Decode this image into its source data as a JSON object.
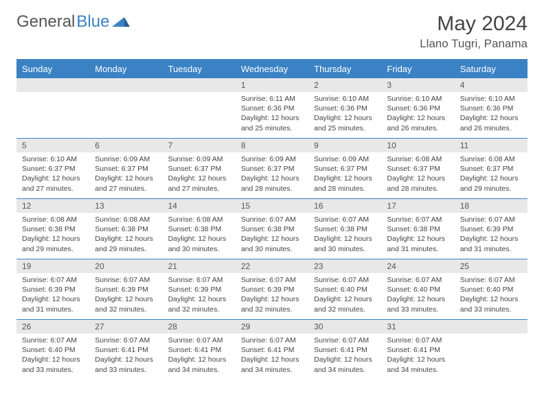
{
  "brand": {
    "part1": "General",
    "part2": "Blue"
  },
  "title": "May 2024",
  "location": "Llano Tugri, Panama",
  "colors": {
    "header_bg": "#3b82c4",
    "header_text": "#ffffff",
    "daynum_bg": "#e8e8e8",
    "border": "#3b82c4",
    "text": "#444444",
    "background": "#ffffff"
  },
  "typography": {
    "title_fontsize": 30,
    "location_fontsize": 17,
    "header_fontsize": 13,
    "daynum_fontsize": 12,
    "content_fontsize": 10.5
  },
  "dayHeaders": [
    "Sunday",
    "Monday",
    "Tuesday",
    "Wednesday",
    "Thursday",
    "Friday",
    "Saturday"
  ],
  "weeks": [
    [
      {
        "day": "",
        "text": ""
      },
      {
        "day": "",
        "text": ""
      },
      {
        "day": "",
        "text": ""
      },
      {
        "day": "1",
        "text": "Sunrise: 6:11 AM\nSunset: 6:36 PM\nDaylight: 12 hours and 25 minutes."
      },
      {
        "day": "2",
        "text": "Sunrise: 6:10 AM\nSunset: 6:36 PM\nDaylight: 12 hours and 25 minutes."
      },
      {
        "day": "3",
        "text": "Sunrise: 6:10 AM\nSunset: 6:36 PM\nDaylight: 12 hours and 26 minutes."
      },
      {
        "day": "4",
        "text": "Sunrise: 6:10 AM\nSunset: 6:36 PM\nDaylight: 12 hours and 26 minutes."
      }
    ],
    [
      {
        "day": "5",
        "text": "Sunrise: 6:10 AM\nSunset: 6:37 PM\nDaylight: 12 hours and 27 minutes."
      },
      {
        "day": "6",
        "text": "Sunrise: 6:09 AM\nSunset: 6:37 PM\nDaylight: 12 hours and 27 minutes."
      },
      {
        "day": "7",
        "text": "Sunrise: 6:09 AM\nSunset: 6:37 PM\nDaylight: 12 hours and 27 minutes."
      },
      {
        "day": "8",
        "text": "Sunrise: 6:09 AM\nSunset: 6:37 PM\nDaylight: 12 hours and 28 minutes."
      },
      {
        "day": "9",
        "text": "Sunrise: 6:09 AM\nSunset: 6:37 PM\nDaylight: 12 hours and 28 minutes."
      },
      {
        "day": "10",
        "text": "Sunrise: 6:08 AM\nSunset: 6:37 PM\nDaylight: 12 hours and 28 minutes."
      },
      {
        "day": "11",
        "text": "Sunrise: 6:08 AM\nSunset: 6:37 PM\nDaylight: 12 hours and 29 minutes."
      }
    ],
    [
      {
        "day": "12",
        "text": "Sunrise: 6:08 AM\nSunset: 6:38 PM\nDaylight: 12 hours and 29 minutes."
      },
      {
        "day": "13",
        "text": "Sunrise: 6:08 AM\nSunset: 6:38 PM\nDaylight: 12 hours and 29 minutes."
      },
      {
        "day": "14",
        "text": "Sunrise: 6:08 AM\nSunset: 6:38 PM\nDaylight: 12 hours and 30 minutes."
      },
      {
        "day": "15",
        "text": "Sunrise: 6:07 AM\nSunset: 6:38 PM\nDaylight: 12 hours and 30 minutes."
      },
      {
        "day": "16",
        "text": "Sunrise: 6:07 AM\nSunset: 6:38 PM\nDaylight: 12 hours and 30 minutes."
      },
      {
        "day": "17",
        "text": "Sunrise: 6:07 AM\nSunset: 6:38 PM\nDaylight: 12 hours and 31 minutes."
      },
      {
        "day": "18",
        "text": "Sunrise: 6:07 AM\nSunset: 6:39 PM\nDaylight: 12 hours and 31 minutes."
      }
    ],
    [
      {
        "day": "19",
        "text": "Sunrise: 6:07 AM\nSunset: 6:39 PM\nDaylight: 12 hours and 31 minutes."
      },
      {
        "day": "20",
        "text": "Sunrise: 6:07 AM\nSunset: 6:39 PM\nDaylight: 12 hours and 32 minutes."
      },
      {
        "day": "21",
        "text": "Sunrise: 6:07 AM\nSunset: 6:39 PM\nDaylight: 12 hours and 32 minutes."
      },
      {
        "day": "22",
        "text": "Sunrise: 6:07 AM\nSunset: 6:39 PM\nDaylight: 12 hours and 32 minutes."
      },
      {
        "day": "23",
        "text": "Sunrise: 6:07 AM\nSunset: 6:40 PM\nDaylight: 12 hours and 32 minutes."
      },
      {
        "day": "24",
        "text": "Sunrise: 6:07 AM\nSunset: 6:40 PM\nDaylight: 12 hours and 33 minutes."
      },
      {
        "day": "25",
        "text": "Sunrise: 6:07 AM\nSunset: 6:40 PM\nDaylight: 12 hours and 33 minutes."
      }
    ],
    [
      {
        "day": "26",
        "text": "Sunrise: 6:07 AM\nSunset: 6:40 PM\nDaylight: 12 hours and 33 minutes."
      },
      {
        "day": "27",
        "text": "Sunrise: 6:07 AM\nSunset: 6:41 PM\nDaylight: 12 hours and 33 minutes."
      },
      {
        "day": "28",
        "text": "Sunrise: 6:07 AM\nSunset: 6:41 PM\nDaylight: 12 hours and 34 minutes."
      },
      {
        "day": "29",
        "text": "Sunrise: 6:07 AM\nSunset: 6:41 PM\nDaylight: 12 hours and 34 minutes."
      },
      {
        "day": "30",
        "text": "Sunrise: 6:07 AM\nSunset: 6:41 PM\nDaylight: 12 hours and 34 minutes."
      },
      {
        "day": "31",
        "text": "Sunrise: 6:07 AM\nSunset: 6:41 PM\nDaylight: 12 hours and 34 minutes."
      },
      {
        "day": "",
        "text": ""
      }
    ]
  ]
}
